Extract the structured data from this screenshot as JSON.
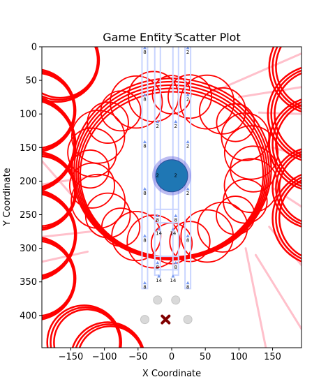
{
  "chart_data": {
    "type": "scatter",
    "title": "Game Entity Scatter Plot",
    "xlabel": "X Coordinate",
    "ylabel": "Y Coordinate",
    "xlim": [
      -193,
      193
    ],
    "ylim": [
      448,
      0
    ],
    "y_inverted": true,
    "grid": false,
    "xticks": [
      -150,
      -100,
      -50,
      0,
      50,
      100,
      150
    ],
    "yticks": [
      0,
      50,
      100,
      150,
      200,
      250,
      300,
      350,
      400
    ],
    "colors": {
      "arcs": "#ff0000",
      "rays": "#ffc0cb",
      "rails": "#c8d4ff",
      "player": "#1f77b4",
      "player_halo": "#6a6adf",
      "target": "#800000",
      "pickups": "#d9d9d9",
      "markers": "#7799ee"
    },
    "player": {
      "x": 0,
      "y": 192,
      "label_left": "2",
      "label_right": "2"
    },
    "target": {
      "x": -9,
      "y": 406
    },
    "pickups": [
      {
        "x": -21,
        "y": 377
      },
      {
        "x": 6,
        "y": 377
      },
      {
        "x": -40,
        "y": 406
      },
      {
        "x": 24,
        "y": 406
      }
    ],
    "rail_columns": [
      {
        "x": -40,
        "y_from": -2,
        "y_to": 360
      },
      {
        "x": -21,
        "y_from": -2,
        "y_to": 340
      },
      {
        "x": 6,
        "y_from": -2,
        "y_to": 340
      },
      {
        "x": 24,
        "y_from": -2,
        "y_to": 360
      }
    ],
    "markers": [
      {
        "x": -40,
        "y": 2,
        "label": "8"
      },
      {
        "x": 24,
        "y": 2,
        "label": "2"
      },
      {
        "x": -21,
        "y": -24,
        "label": "2"
      },
      {
        "x": 6,
        "y": -24,
        "label": "2"
      },
      {
        "x": -40,
        "y": 72,
        "label": "8"
      },
      {
        "x": 24,
        "y": 72,
        "label": "2"
      },
      {
        "x": -21,
        "y": 112,
        "label": "2"
      },
      {
        "x": 6,
        "y": 112,
        "label": "2"
      },
      {
        "x": -40,
        "y": 142,
        "label": "8"
      },
      {
        "x": 24,
        "y": 142,
        "label": "2"
      },
      {
        "x": -21,
        "y": 188,
        "label": "2"
      },
      {
        "x": 6,
        "y": 188,
        "label": "2"
      },
      {
        "x": -40,
        "y": 212,
        "label": "8"
      },
      {
        "x": 24,
        "y": 212,
        "label": "2"
      },
      {
        "x": -21,
        "y": 252,
        "label": "8"
      },
      {
        "x": 6,
        "y": 252,
        "label": "8"
      },
      {
        "x": -19,
        "y": 272,
        "label": "14"
      },
      {
        "x": 2,
        "y": 272,
        "label": "14"
      },
      {
        "x": -40,
        "y": 282,
        "label": "8"
      },
      {
        "x": 24,
        "y": 282,
        "label": "8"
      },
      {
        "x": -21,
        "y": 322,
        "label": "8"
      },
      {
        "x": 6,
        "y": 322,
        "label": "8"
      },
      {
        "x": -40,
        "y": 352,
        "label": "8"
      },
      {
        "x": -19,
        "y": 342,
        "label": "14"
      },
      {
        "x": 2,
        "y": 342,
        "label": "14"
      },
      {
        "x": 24,
        "y": 352,
        "label": "8"
      }
    ],
    "ring": {
      "cx": 0,
      "cy": 182,
      "rx": 148,
      "ry": 135
    },
    "left_arcs": [
      {
        "cx": -205,
        "cy": 95,
        "r": 62
      },
      {
        "cx": -215,
        "cy": 145,
        "r": 72
      },
      {
        "cx": -200,
        "cy": 215,
        "r": 58
      },
      {
        "cx": -210,
        "cy": 280,
        "r": 68
      },
      {
        "cx": -205,
        "cy": 345,
        "r": 62
      },
      {
        "cx": -170,
        "cy": 20,
        "r": 62
      },
      {
        "cx": -130,
        "cy": 440,
        "r": 55
      },
      {
        "cx": -95,
        "cy": 465,
        "r": 55
      }
    ],
    "right_arcs": [
      {
        "cx": 215,
        "cy": 30,
        "r": 70
      },
      {
        "cx": 215,
        "cy": 100,
        "r": 72
      },
      {
        "cx": 215,
        "cy": 145,
        "r": 70
      },
      {
        "cx": 210,
        "cy": 210,
        "r": 60
      },
      {
        "cx": 220,
        "cy": 255,
        "r": 70
      }
    ],
    "rays": [
      {
        "x1": 60,
        "y1": 68,
        "x2": 193,
        "y2": 10
      },
      {
        "x1": 100,
        "y1": 75,
        "x2": 193,
        "y2": 60
      },
      {
        "x1": 130,
        "y1": 98,
        "x2": 193,
        "y2": 100
      },
      {
        "x1": 150,
        "y1": 150,
        "x2": 193,
        "y2": 162
      },
      {
        "x1": 150,
        "y1": 210,
        "x2": 193,
        "y2": 238
      },
      {
        "x1": 145,
        "y1": 268,
        "x2": 193,
        "y2": 325
      },
      {
        "x1": 125,
        "y1": 310,
        "x2": 193,
        "y2": 420
      },
      {
        "x1": 110,
        "y1": 300,
        "x2": 140,
        "y2": 448
      },
      {
        "x1": -120,
        "y1": 275,
        "x2": -193,
        "y2": 283
      },
      {
        "x1": -125,
        "y1": 305,
        "x2": -193,
        "y2": 320
      },
      {
        "x1": -130,
        "y1": 195,
        "x2": -193,
        "y2": 205
      },
      {
        "x1": -145,
        "y1": 225,
        "x2": -193,
        "y2": 170
      }
    ]
  }
}
